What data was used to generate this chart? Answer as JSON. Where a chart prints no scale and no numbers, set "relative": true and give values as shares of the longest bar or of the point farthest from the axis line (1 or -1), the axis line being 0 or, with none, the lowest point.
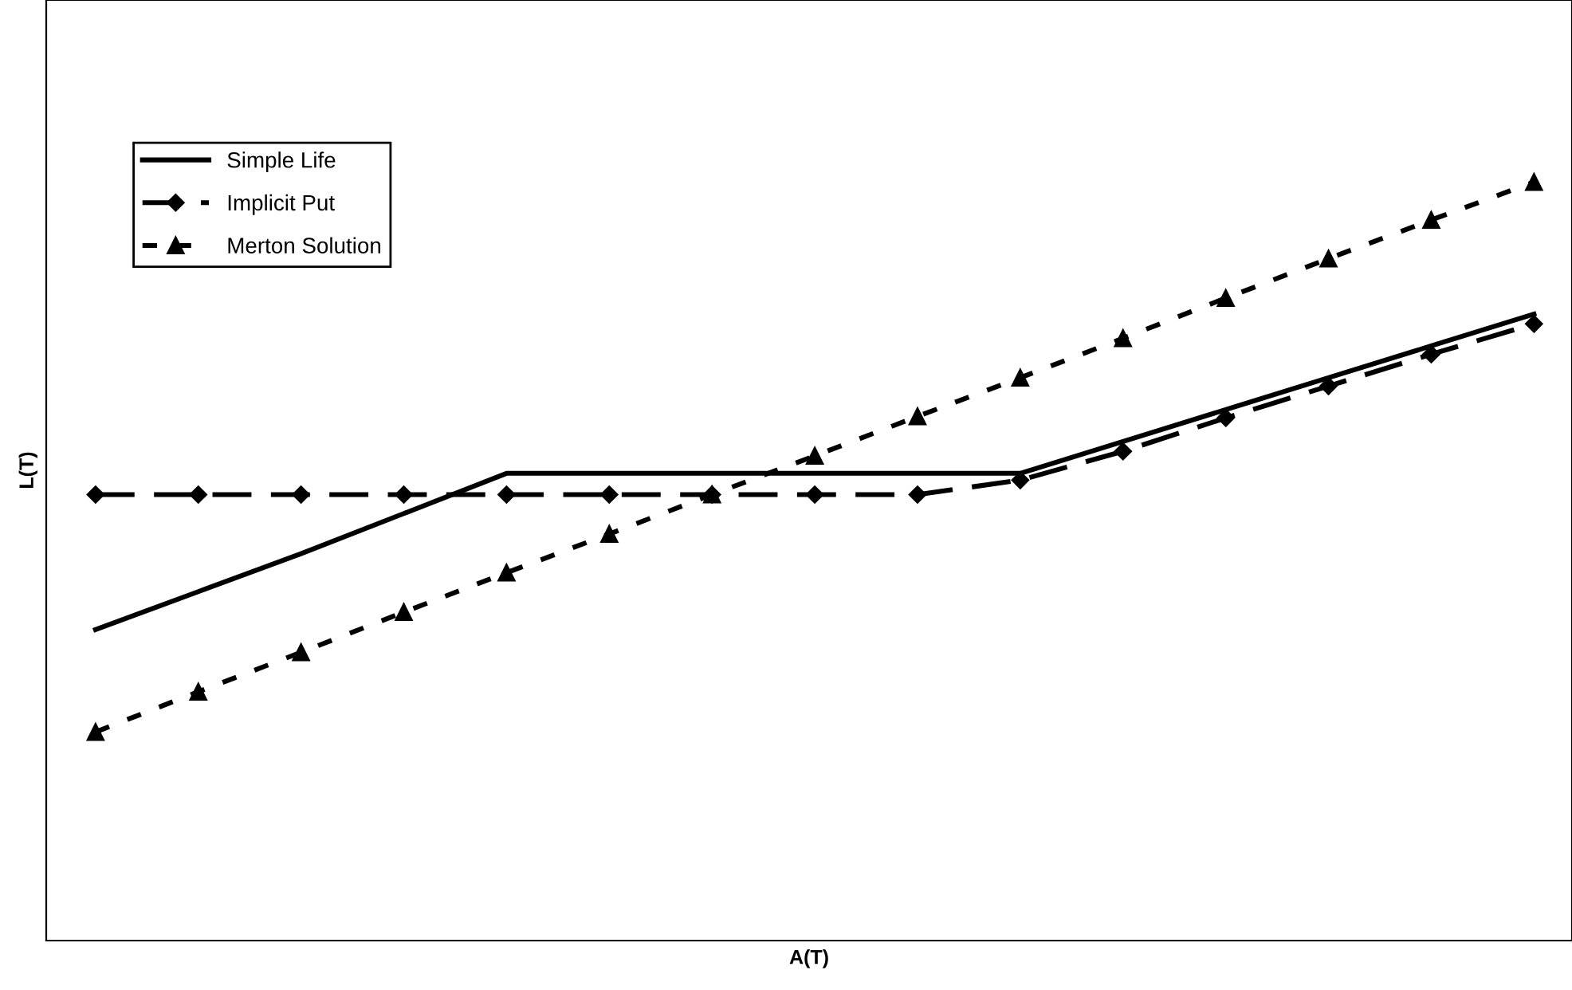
{
  "chart_data": {
    "type": "line",
    "xlabel": "A(T)",
    "ylabel": "L(T)",
    "relative": true,
    "tick_labels": false,
    "grid": false,
    "legend": "top left",
    "categories": [
      null,
      null,
      null,
      null,
      null,
      null,
      null,
      null,
      null,
      null,
      null,
      null,
      null,
      null,
      null
    ],
    "series": [
      {
        "name": "Simple Life",
        "color": "#000000",
        "line_style": "solid",
        "marker": "none",
        "values": [
          0.41,
          0.46,
          0.51,
          0.563,
          0.616,
          0.616,
          0.616,
          0.616,
          0.616,
          0.616,
          0.658,
          0.7,
          0.742,
          0.784,
          0.826
        ]
      },
      {
        "name": "Implicit Put",
        "color": "#000000",
        "line_style": "dashed",
        "marker": "diamond",
        "values": [
          0.588,
          0.588,
          0.588,
          0.588,
          0.588,
          0.588,
          0.588,
          0.588,
          0.588,
          0.607,
          0.645,
          0.689,
          0.731,
          0.773,
          0.813
        ]
      },
      {
        "name": "Merton Solution",
        "color": "#000000",
        "line_style": "dotted",
        "marker": "triangle",
        "values": [
          0.275,
          0.328,
          0.38,
          0.433,
          0.485,
          0.536,
          0.588,
          0.639,
          0.691,
          0.742,
          0.794,
          0.847,
          0.899,
          0.95,
          1.0
        ]
      }
    ]
  }
}
